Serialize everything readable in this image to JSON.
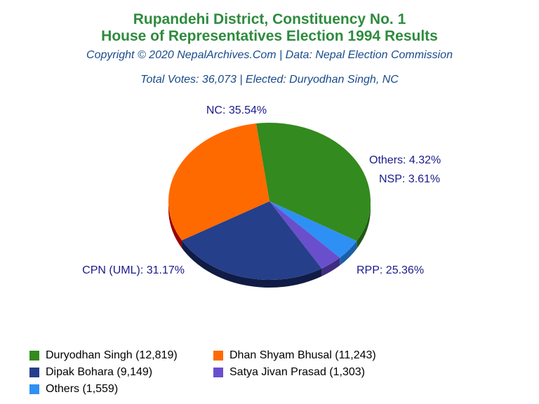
{
  "header": {
    "title_line1": "Rupandehi District, Constituency No. 1",
    "title_line2": "House of Representatives Election 1994 Results",
    "credit": "Copyright © 2020 NepalArchives.Com | Data: Nepal Election Commission",
    "summary": "Total Votes: 36,073 | Elected: Duryodhan Singh, NC"
  },
  "chart_data": {
    "type": "pie",
    "slices": [
      {
        "label": "NC: 35.54%",
        "party": "NC",
        "percent": 35.54,
        "candidate": "Duryodhan Singh",
        "votes": 12819,
        "legend": "Duryodhan Singh (12,819)",
        "color": "#338a1e",
        "side": "#1f5a12"
      },
      {
        "label": "Others: 4.32%",
        "party": "Others",
        "percent": 4.32,
        "candidate": "Others",
        "votes": 1559,
        "legend": "Others (1,559)",
        "color": "#2e90f5",
        "side": "#1a5fa8"
      },
      {
        "label": "NSP: 3.61%",
        "party": "NSP",
        "percent": 3.61,
        "candidate": "Satya Jivan Prasad",
        "votes": 1303,
        "legend": "Satya Jivan Prasad (1,303)",
        "color": "#6a4fcc",
        "side": "#3e2d80"
      },
      {
        "label": "RPP: 25.36%",
        "party": "RPP",
        "percent": 25.36,
        "candidate": "Dipak Bohara",
        "votes": 9149,
        "legend": "Dipak Bohara (9,149)",
        "color": "#253f8a",
        "side": "#101c45"
      },
      {
        "label": "CPN (UML): 31.17%",
        "party": "CPN (UML)",
        "percent": 31.17,
        "candidate": "Dhan Shyam Bhusal",
        "votes": 11243,
        "legend": "Dhan Shyam Bhusal (11,243)",
        "color": "#ff6a00",
        "side": "#990000"
      }
    ],
    "legend_order": [
      "Duryodhan Singh (12,819)",
      "Dhan Shyam Bhusal (11,243)",
      "Dipak Bohara (9,149)",
      "Satya Jivan Prasad (1,303)",
      "Others (1,559)"
    ],
    "legend_colors": [
      "#338a1e",
      "#ff6a00",
      "#253f8a",
      "#6a4fcc",
      "#2e90f5"
    ]
  }
}
